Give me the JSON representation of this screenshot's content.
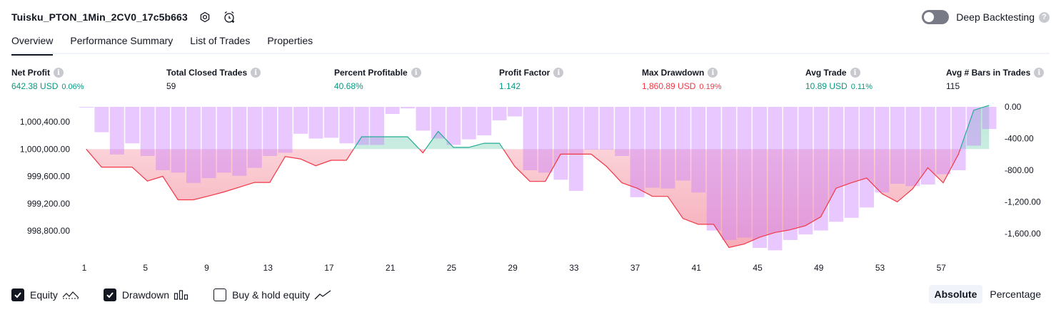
{
  "header": {
    "title": "Tuisku_PTON_1Min_2CV0_17c5b663",
    "settings_icon": "gear-icon",
    "alert_icon": "alarm-add-icon"
  },
  "deep_backtesting": {
    "label": "Deep Backtesting",
    "enabled": false,
    "help": "?"
  },
  "tabs": [
    {
      "label": "Overview",
      "active": true
    },
    {
      "label": "Performance Summary",
      "active": false
    },
    {
      "label": "List of Trades",
      "active": false
    },
    {
      "label": "Properties",
      "active": false
    }
  ],
  "stats": [
    {
      "label": "Net Profit",
      "value": "642.38 USD",
      "pct": "0.06%",
      "tone": "pos"
    },
    {
      "label": "Total Closed Trades",
      "value": "59",
      "pct": "",
      "tone": "neutral"
    },
    {
      "label": "Percent Profitable",
      "value": "40.68%",
      "pct": "",
      "tone": "pos"
    },
    {
      "label": "Profit Factor",
      "value": "1.142",
      "pct": "",
      "tone": "pos"
    },
    {
      "label": "Max Drawdown",
      "value": "1,860.89 USD",
      "pct": "0.19%",
      "tone": "neg"
    },
    {
      "label": "Avg Trade",
      "value": "10.89 USD",
      "pct": "0.11%",
      "tone": "pos"
    },
    {
      "label": "Avg # Bars in Trades",
      "value": "115",
      "pct": "",
      "tone": "neutral"
    }
  ],
  "info_glyph": "i",
  "chart_data": {
    "type": "area",
    "x_ticks": [
      "1",
      "5",
      "9",
      "13",
      "17",
      "21",
      "25",
      "29",
      "33",
      "37",
      "41",
      "45",
      "49",
      "53",
      "57"
    ],
    "left_axis": {
      "ticks": [
        "1,000,400.00",
        "1,000,000.00",
        "999,600.00",
        "999,200.00",
        "998,800.00"
      ],
      "values": [
        1000400,
        1000000,
        999600,
        999200,
        998800
      ]
    },
    "right_axis": {
      "ticks": [
        "0.00",
        "-400.00",
        "-800.00",
        "-1,200.00",
        "-1,600.00"
      ],
      "values": [
        0,
        -400,
        -800,
        -1200,
        -1600
      ]
    },
    "equity_baseline": 1000000,
    "equity": [
      1000000,
      999735,
      999735,
      999735,
      999530,
      999600,
      999255,
      999255,
      999310,
      999370,
      999440,
      999510,
      999510,
      999890,
      999855,
      999755,
      999835,
      999835,
      1000180,
      1000180,
      1000180,
      1000180,
      999945,
      1000260,
      1000025,
      1000025,
      1000085,
      1000085,
      999745,
      999525,
      999525,
      999925,
      999925,
      999925,
      999745,
      999505,
      999425,
      999305,
      999305,
      998980,
      998895,
      998895,
      998555,
      998605,
      998705,
      998775,
      998815,
      998875,
      999005,
      999425,
      999505,
      999575,
      999345,
      999225,
      999415,
      999725,
      999505,
      999925,
      1000570,
      1000642
    ],
    "drawdown": [
      0,
      -320,
      -600,
      -460,
      -620,
      -800,
      -830,
      -960,
      -900,
      -830,
      -870,
      -770,
      -620,
      -580,
      -340,
      -400,
      -390,
      -460,
      -480,
      -480,
      -90,
      -20,
      -300,
      -400,
      -480,
      -410,
      -360,
      -170,
      -120,
      -800,
      -830,
      -920,
      -1060,
      -540,
      -540,
      -620,
      -1140,
      -1020,
      -1030,
      -930,
      -1080,
      -1560,
      -1680,
      -1650,
      -1780,
      -1810,
      -1680,
      -1610,
      -1560,
      -1450,
      -1400,
      -1270,
      -1080,
      -970,
      -1000,
      -980,
      -850,
      -800,
      -490,
      -280
    ]
  },
  "legend": [
    {
      "label": "Equity",
      "checked": true,
      "icon": "equity-line-icon"
    },
    {
      "label": "Drawdown",
      "checked": true,
      "icon": "drawdown-bars-icon"
    },
    {
      "label": "Buy & hold equity",
      "checked": false,
      "icon": "trend-line-icon"
    }
  ],
  "modes": [
    {
      "label": "Absolute",
      "active": true
    },
    {
      "label": "Percentage",
      "active": false
    }
  ]
}
